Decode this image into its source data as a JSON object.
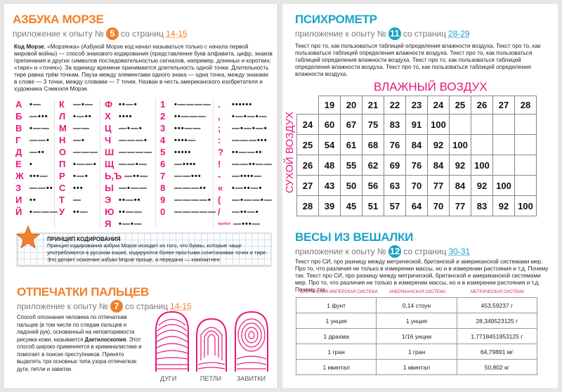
{
  "left_page": {
    "morse": {
      "title": "АЗБУКА МОРЗЕ",
      "sub_prefix": "приложение к опыту №",
      "number": "5",
      "sub_mid": "со страниц",
      "pages": "14-15",
      "intro_bold": "Код Морзе",
      "intro": ", «Морзянка» (Азбукой Морзе код начал называться только с начала первой мировой войны) — способ знакового кодирования (представление букв алфавита, цифр, знаков препинания и других символов последовательностью сигналов, например, длинных и коротких: «тире» и «точек»). За единицу времени принимается длительность одной точки. Длительность тире равна трём точкам. Пауза между элементами одного знака — одна точка, между знаками в слове — 3 точки, между словами — 7 точек. Назван в честь американского изобретателя и художника Сэмюэля Морзе.",
      "columns": [
        [
          {
            "s": "А",
            "c": "•—"
          },
          {
            "s": "Б",
            "c": "—•••"
          },
          {
            "s": "В",
            "c": "•——"
          },
          {
            "s": "Г",
            "c": "——•"
          },
          {
            "s": "Д",
            "c": "—••"
          },
          {
            "s": "Е",
            "c": "•"
          },
          {
            "s": "Ж",
            "c": "•••—"
          },
          {
            "s": "З",
            "c": "——••"
          },
          {
            "s": "И",
            "c": "••"
          },
          {
            "s": "Й",
            "c": "•———"
          }
        ],
        [
          {
            "s": "К",
            "c": "—•—"
          },
          {
            "s": "Л",
            "c": "•—••"
          },
          {
            "s": "М",
            "c": "——"
          },
          {
            "s": "Н",
            "c": "—•"
          },
          {
            "s": "О",
            "c": "———"
          },
          {
            "s": "П",
            "c": "•——•"
          },
          {
            "s": "Р",
            "c": "•—•"
          },
          {
            "s": "С",
            "c": "•••"
          },
          {
            "s": "Т",
            "c": "—"
          },
          {
            "s": "У",
            "c": "••—"
          }
        ],
        [
          {
            "s": "Ф",
            "c": "••—•"
          },
          {
            "s": "Х",
            "c": "••••"
          },
          {
            "s": "Ц",
            "c": "—•—•"
          },
          {
            "s": "Ч",
            "c": "———•"
          },
          {
            "s": "Ш",
            "c": "————"
          },
          {
            "s": "Щ",
            "c": "——•—"
          },
          {
            "s": "Ь,Ъ",
            "c": "—••—"
          },
          {
            "s": "Ы",
            "c": "—•——"
          },
          {
            "s": "Э",
            "c": "••—••"
          },
          {
            "s": "Ю",
            "c": "••——"
          },
          {
            "s": "Я",
            "c": "•—•—"
          }
        ],
        [
          {
            "s": "1",
            "c": "•————"
          },
          {
            "s": "2",
            "c": "••———"
          },
          {
            "s": "3",
            "c": "•••——"
          },
          {
            "s": "4",
            "c": "••••—"
          },
          {
            "s": "5",
            "c": "•••••"
          },
          {
            "s": "6",
            "c": "—••••"
          },
          {
            "s": "7",
            "c": "——•••"
          },
          {
            "s": "8",
            "c": "———••"
          },
          {
            "s": "9",
            "c": "————•"
          },
          {
            "s": "0",
            "c": "—————"
          }
        ],
        [
          {
            "s": ".",
            "c": "••••••"
          },
          {
            "s": ",",
            "c": "•—•—•—"
          },
          {
            "s": ";",
            "c": "—•—•—•"
          },
          {
            "s": ":",
            "c": "———•••"
          },
          {
            "s": "?",
            "c": "••——••"
          },
          {
            "s": "!",
            "c": "——••——"
          },
          {
            "s": "-",
            "c": "—••••—"
          },
          {
            "s": "«",
            "c": "•—••—•"
          },
          {
            "s": "(",
            "c": "—•——•—"
          },
          {
            "s": "/",
            "c": "—••—•"
          },
          {
            "s": "пробел",
            "c": "—•••—"
          }
        ]
      ],
      "principle_title": "ПРИНЦИП КОДИРОВАНИЯ",
      "principle_text": "Принцип кодирования азбуки Морзе исходит из того, что буквы, которые чаще употребляются в русском языке, кодируются более простыми сочетаниями точек и тире. Это делает освоение азбуки Морзе проще, а передачи — компактнее."
    },
    "fingerprints": {
      "title": "ОТПЕЧАТКИ ПАЛЬЦЕВ",
      "sub_prefix": "приложение к опыту №",
      "number": "7",
      "sub_mid": "со страниц",
      "pages": "14-15",
      "text_a": "Способ опознания человека по отпечаткам пальцев (в том числе по следам пальцев и ладоней рук), основанный на неповторимости рисунка кожи, называется ",
      "text_bold": "Дактилоскопия",
      "text_b": ". Этот способ широко применяется в криминалистике и помогает в поиске преступников. Принято выделять три основных типа узора отпечатков: дуги, петли и завитки.",
      "labels": [
        "ДУГИ",
        "ПЕТЛИ",
        "ЗАВИТКИ"
      ]
    }
  },
  "right_page": {
    "psychrometer": {
      "title": "ПСИХРОМЕТР",
      "sub_prefix": "приложение к опыту №",
      "number": "11",
      "sub_mid": "со страниц",
      "pages": "28-29",
      "text": "Текст про то, как пользоваться таблицей определения влажности воздуха. Текст про то, как пользоваться таблицей определения влажности воздуха. Текст про то, как пользоваться таблицей определения влажности воздуха. Текст про то, как пользоваться таблицей определения влажности воздуха. Текст про то, как пользоваться таблицей определения влажности воздуха.",
      "wet_label": "ВЛАЖНЫЙ ВОЗДУХ",
      "dry_label": "СУХОЙ ВОЗДУХ",
      "columns": [
        "19",
        "20",
        "21",
        "22",
        "23",
        "24",
        "25",
        "26",
        "27",
        "28"
      ],
      "rows": [
        {
          "dry": "24",
          "values": [
            "60",
            "67",
            "75",
            "83",
            "91",
            "100",
            "",
            "",
            "",
            ""
          ]
        },
        {
          "dry": "25",
          "values": [
            "54",
            "61",
            "68",
            "76",
            "84",
            "92",
            "100",
            "",
            "",
            ""
          ]
        },
        {
          "dry": "26",
          "values": [
            "48",
            "55",
            "62",
            "69",
            "76",
            "84",
            "92",
            "100",
            "",
            ""
          ]
        },
        {
          "dry": "27",
          "values": [
            "43",
            "50",
            "56",
            "63",
            "70",
            "77",
            "84",
            "92",
            "100",
            ""
          ]
        },
        {
          "dry": "28",
          "values": [
            "39",
            "45",
            "51",
            "57",
            "64",
            "70",
            "77",
            "83",
            "92",
            "100"
          ]
        }
      ]
    },
    "scales": {
      "title": "ВЕСЫ ИЗ ВЕШАЛКИ",
      "sub_prefix": "приложение к опыту №",
      "number": "12",
      "sub_mid": "со страниц",
      "pages": "30-31",
      "text": "Текст про СИ, про разницу между метрической, британской и американской системами мер. Про то, что различия не только в измерении массы, но и в измерении растояния и т.д. Почему так. Текст про СИ, про разницу между метрической, британской и американской системами мер. Про то, что различия не только в измерении массы, но и в измерении растояния и т.д. Почему так.",
      "headers": [
        "Британская имперская система",
        "Американская система",
        "Метрическая система"
      ],
      "rows": [
        [
          "1 фунт",
          "0,14 стоун",
          "453,59237 г"
        ],
        [
          "1 унция",
          "1 унция",
          "28,349523125 г"
        ],
        [
          "1 драхма",
          "1/16 унции",
          "1,7718451953125 г"
        ],
        [
          "1 гран",
          "1 гран",
          "64,79891 мг"
        ],
        [
          "1 квинтал",
          "1 квинтал",
          "50,802 кг"
        ]
      ]
    }
  },
  "colors": {
    "orange": "#f07f2a",
    "blue": "#1aa3c8",
    "pink": "#e6197a"
  }
}
